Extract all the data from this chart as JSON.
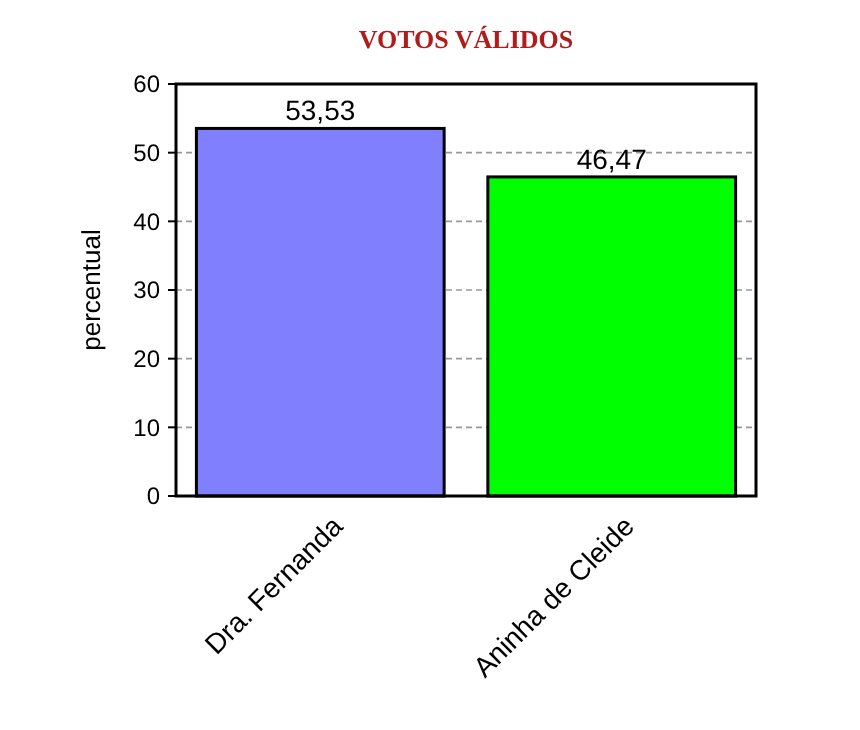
{
  "chart_data": {
    "type": "bar",
    "title": "VOTOS VÁLIDOS",
    "ylabel": "percentual",
    "categories": [
      "Dra. Fernanda",
      "Aninha de Cleide"
    ],
    "values": [
      53.53,
      46.47
    ],
    "value_labels": [
      "53,53",
      "46,47"
    ],
    "colors": [
      "#8080ff",
      "#00ff00"
    ],
    "ylim": [
      0,
      60
    ],
    "yticks": [
      0,
      10,
      20,
      30,
      40,
      50,
      60
    ],
    "grid": "y"
  }
}
